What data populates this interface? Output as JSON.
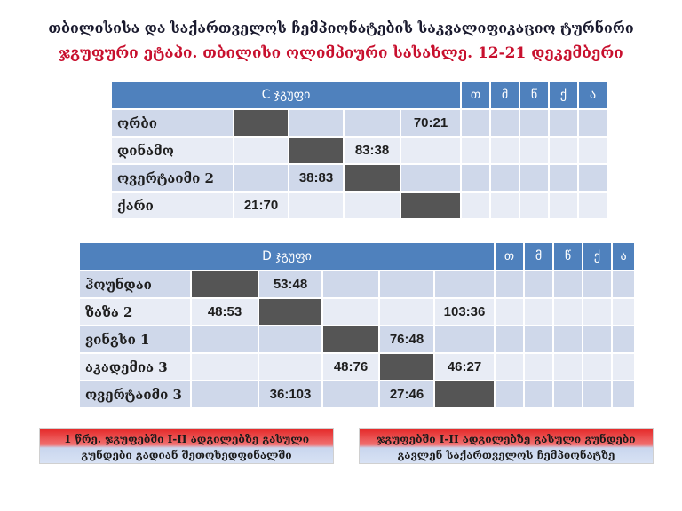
{
  "header": {
    "title": "თბილისისა და საქართველოს ჩემპიონატების საკვალიფიკაციო ტურნირი",
    "subtitle": "ჯგუფური ეტაპი. თბილისი ოლიმპიური სასახლე. 12-21 დეკემბერი"
  },
  "columns": [
    "თ",
    "მ",
    "წ",
    "ქ",
    "ა"
  ],
  "group_c": {
    "name": "C ჯგუფი",
    "rows": [
      {
        "team": "ორბი",
        "cells": [
          "#",
          "",
          "",
          "70:21"
        ]
      },
      {
        "team": "დინამო",
        "cells": [
          "",
          "#",
          "83:38",
          ""
        ]
      },
      {
        "team": "ოვერტაიმი 2",
        "cells": [
          "",
          "38:83",
          "#",
          ""
        ]
      },
      {
        "team": "ქარი",
        "cells": [
          "21:70",
          "",
          "",
          "#"
        ]
      }
    ]
  },
  "group_d": {
    "name": "D ჯგუფი",
    "rows": [
      {
        "team": "ჰოუნდაი",
        "cells": [
          "#",
          "53:48",
          "",
          "",
          ""
        ]
      },
      {
        "team": "ზაზა 2",
        "cells": [
          "48:53",
          "#",
          "",
          "",
          "103:36"
        ]
      },
      {
        "team": "ვინგსი 1",
        "cells": [
          "",
          "",
          "#",
          "76:48",
          ""
        ]
      },
      {
        "team": "აკადემია 3",
        "cells": [
          "",
          "",
          "48:76",
          "#",
          "46:27"
        ]
      },
      {
        "team": "ოვერტაიმი 3",
        "cells": [
          "",
          "36:103",
          "",
          "27:46",
          "#"
        ]
      }
    ]
  },
  "notes": {
    "left_line1": "1 წრე. ჯგუფებში I-II ადგილებზე გასული",
    "left_line2": "გუნდები გადიან შეთოხედფინალში",
    "right_line1": "ჯგუფებში I-II ადგილებზე გასული გუნდები",
    "right_line2": "გავლენ საქართველოს ჩემპიონატზე"
  },
  "colors": {
    "header_bg": "#4f81bd",
    "diagonal": "#555555",
    "row_odd": "#cfd8ea",
    "row_even": "#e8ecf5",
    "subtitle": "#c8102e"
  }
}
